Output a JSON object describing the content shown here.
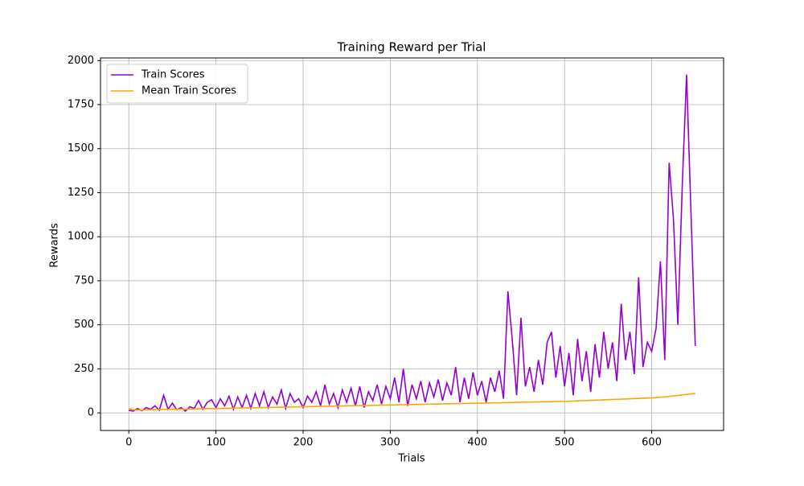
{
  "chart_data": {
    "type": "line",
    "title": "Training Reward per Trial",
    "x_label": "Trials",
    "y_label": "Rewards",
    "x": [
      0,
      5,
      10,
      15,
      20,
      25,
      30,
      35,
      40,
      45,
      50,
      55,
      60,
      65,
      70,
      75,
      80,
      85,
      90,
      95,
      100,
      105,
      110,
      115,
      120,
      125,
      130,
      135,
      140,
      145,
      150,
      155,
      160,
      165,
      170,
      175,
      180,
      185,
      190,
      195,
      200,
      205,
      210,
      215,
      220,
      225,
      230,
      235,
      240,
      245,
      250,
      255,
      260,
      265,
      270,
      275,
      280,
      285,
      290,
      295,
      300,
      305,
      310,
      315,
      320,
      325,
      330,
      335,
      340,
      345,
      350,
      355,
      360,
      365,
      370,
      375,
      380,
      385,
      390,
      395,
      400,
      405,
      410,
      415,
      420,
      425,
      430,
      435,
      440,
      445,
      450,
      455,
      460,
      465,
      470,
      475,
      480,
      485,
      490,
      495,
      500,
      505,
      510,
      515,
      520,
      525,
      530,
      535,
      540,
      545,
      550,
      555,
      560,
      565,
      570,
      575,
      580,
      585,
      590,
      595,
      600,
      605,
      610,
      615,
      620,
      625,
      630,
      635,
      640,
      645,
      650
    ],
    "series": [
      {
        "name": "Train Scores",
        "color": "#9400d3",
        "values": [
          15,
          10,
          25,
          12,
          30,
          20,
          40,
          15,
          100,
          20,
          55,
          18,
          30,
          10,
          35,
          25,
          70,
          20,
          60,
          75,
          30,
          80,
          40,
          95,
          20,
          90,
          30,
          100,
          25,
          110,
          40,
          120,
          30,
          90,
          50,
          130,
          25,
          110,
          60,
          80,
          30,
          95,
          60,
          120,
          40,
          160,
          50,
          110,
          30,
          130,
          60,
          140,
          40,
          150,
          30,
          120,
          70,
          160,
          50,
          150,
          80,
          200,
          60,
          250,
          40,
          160,
          80,
          180,
          60,
          170,
          90,
          190,
          70,
          170,
          100,
          260,
          60,
          200,
          80,
          230,
          100,
          180,
          60,
          200,
          120,
          240,
          80,
          690,
          415,
          100,
          540,
          150,
          260,
          120,
          300,
          160,
          400,
          460,
          200,
          380,
          150,
          340,
          100,
          420,
          180,
          350,
          120,
          390,
          200,
          460,
          250,
          400,
          180,
          620,
          300,
          460,
          220,
          770,
          260,
          400,
          350,
          480,
          860,
          300,
          1420,
          1100,
          500,
          1280,
          1920,
          1150,
          380
        ]
      },
      {
        "name": "Mean Train Scores",
        "color": "#ffa500",
        "values": [
          25,
          18,
          16,
          16,
          17,
          18,
          18,
          19,
          20,
          20,
          20,
          20,
          21,
          21,
          22,
          22,
          23,
          23,
          24,
          24,
          25,
          25,
          26,
          26,
          27,
          27,
          28,
          28,
          29,
          29,
          30,
          30,
          31,
          31,
          32,
          32,
          33,
          33,
          34,
          34,
          35,
          35,
          36,
          36,
          37,
          37,
          38,
          38,
          39,
          39,
          40,
          40,
          41,
          41,
          42,
          42,
          43,
          43,
          44,
          44,
          45,
          45,
          46,
          46,
          47,
          47,
          48,
          48,
          49,
          49,
          50,
          50,
          51,
          51,
          52,
          52,
          53,
          53,
          54,
          54,
          55,
          55,
          56,
          56,
          57,
          57,
          58,
          58,
          59,
          60,
          60,
          61,
          61,
          62,
          62,
          63,
          63,
          64,
          64,
          65,
          65,
          66,
          67,
          68,
          69,
          70,
          71,
          72,
          73,
          74,
          75,
          76,
          77,
          78,
          79,
          80,
          81,
          82,
          83,
          84,
          85,
          87,
          89,
          91,
          93,
          96,
          99,
          102,
          105,
          108,
          110
        ]
      }
    ],
    "xlim": [
      -32.5,
      682.5
    ],
    "ylim": [
      -100,
      2015
    ],
    "xticks": [
      0,
      100,
      200,
      300,
      400,
      500,
      600
    ],
    "yticks": [
      0,
      250,
      500,
      750,
      1000,
      1250,
      1500,
      1750,
      2000
    ],
    "grid": true,
    "legend": "upper-left"
  }
}
